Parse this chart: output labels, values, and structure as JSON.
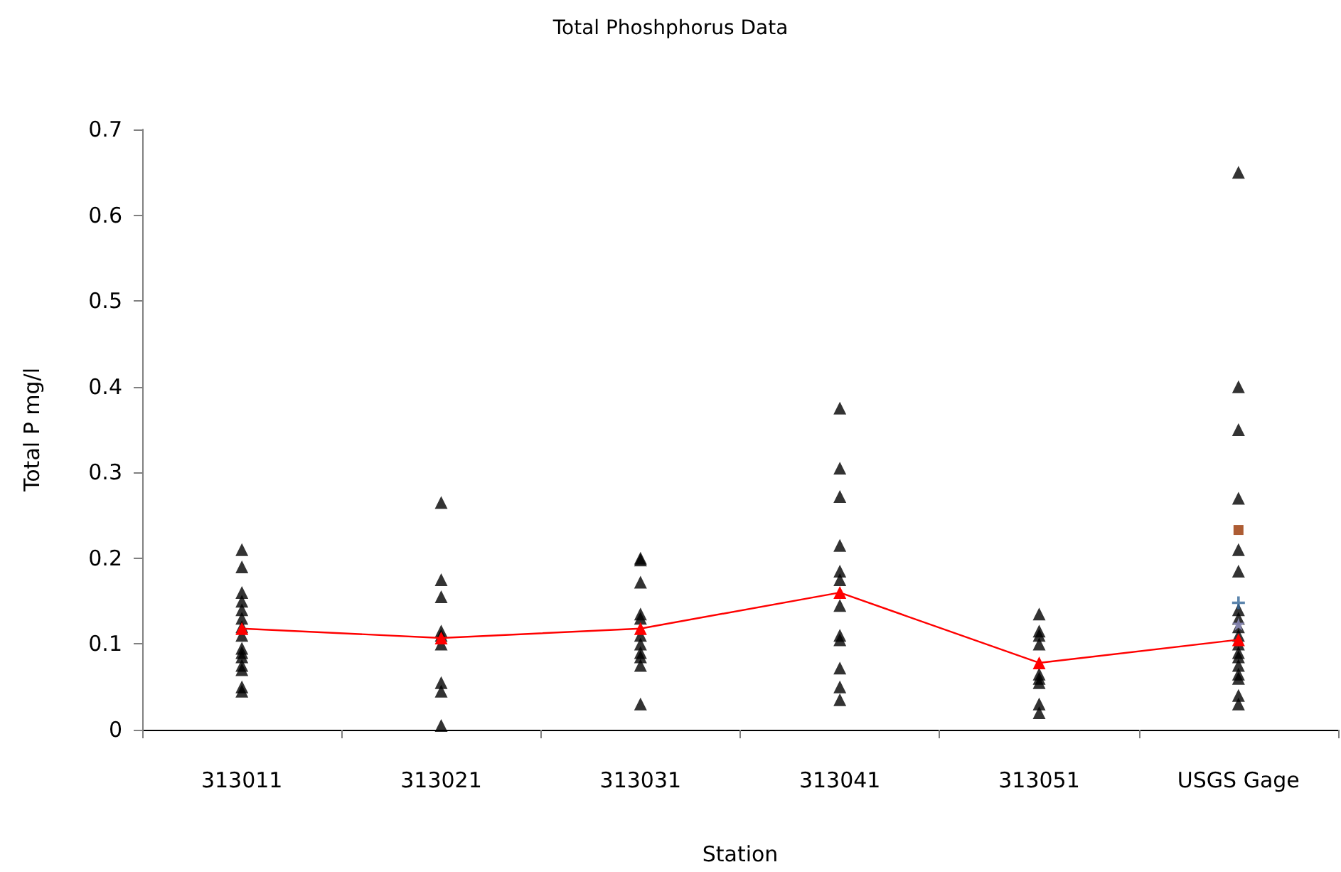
{
  "chart_data": {
    "type": "scatter",
    "title": "Total Phoshphorus Data",
    "xlabel": "Station",
    "ylabel": "Total P mg/l",
    "categories": [
      "313011",
      "313021",
      "313031",
      "313041",
      "313051",
      "USGS Gage"
    ],
    "ylim": [
      0,
      0.7
    ],
    "yticks": [
      0,
      0.1,
      0.2,
      0.3,
      0.4,
      0.5,
      0.6,
      0.7
    ],
    "grid": false,
    "series": [
      {
        "color": "#000000",
        "marker": "triangle",
        "x": [
          "313011",
          "313011",
          "313011",
          "313011",
          "313011",
          "313011",
          "313011",
          "313011",
          "313011",
          "313011",
          "313011",
          "313011",
          "313011",
          "313011",
          "313011",
          "313021",
          "313021",
          "313021",
          "313021",
          "313021",
          "313021",
          "313021",
          "313021",
          "313021",
          "313031",
          "313031",
          "313031",
          "313031",
          "313031",
          "313031",
          "313031",
          "313031",
          "313031",
          "313031",
          "313031",
          "313041",
          "313041",
          "313041",
          "313041",
          "313041",
          "313041",
          "313041",
          "313041",
          "313041",
          "313041",
          "313041",
          "313041",
          "313051",
          "313051",
          "313051",
          "313051",
          "313051",
          "313051",
          "313051",
          "313051",
          "313051",
          "USGS Gage",
          "USGS Gage",
          "USGS Gage",
          "USGS Gage",
          "USGS Gage",
          "USGS Gage",
          "USGS Gage",
          "USGS Gage",
          "USGS Gage",
          "USGS Gage",
          "USGS Gage",
          "USGS Gage",
          "USGS Gage",
          "USGS Gage",
          "USGS Gage",
          "USGS Gage",
          "USGS Gage",
          "USGS Gage"
        ],
        "values": [
          0.21,
          0.19,
          0.16,
          0.15,
          0.14,
          0.13,
          0.12,
          0.11,
          0.095,
          0.09,
          0.085,
          0.075,
          0.07,
          0.05,
          0.045,
          0.265,
          0.175,
          0.155,
          0.115,
          0.11,
          0.1,
          0.055,
          0.045,
          0.005,
          0.2,
          0.198,
          0.172,
          0.135,
          0.13,
          0.11,
          0.1,
          0.09,
          0.085,
          0.075,
          0.03,
          0.375,
          0.305,
          0.272,
          0.215,
          0.185,
          0.175,
          0.145,
          0.11,
          0.105,
          0.072,
          0.05,
          0.035,
          0.135,
          0.115,
          0.11,
          0.1,
          0.065,
          0.06,
          0.055,
          0.03,
          0.02,
          0.65,
          0.4,
          0.35,
          0.27,
          0.21,
          0.185,
          0.14,
          0.13,
          0.12,
          0.11,
          0.1,
          0.09,
          0.085,
          0.075,
          0.065,
          0.06,
          0.04,
          0.03
        ]
      },
      {
        "color": "#993300",
        "marker": "square",
        "x": [
          "USGS Gage"
        ],
        "values": [
          0.233
        ]
      },
      {
        "color": "#336699",
        "marker": "cross",
        "x": [
          "USGS Gage"
        ],
        "values": [
          0.148
        ]
      },
      {
        "color": "#9999cc",
        "marker": "star",
        "x": [
          "USGS Gage"
        ],
        "values": [
          0.123
        ]
      },
      {
        "type": "line",
        "color": "#ff0000",
        "marker": "triangle",
        "line_style": "solid",
        "values": [
          0.118,
          0.107,
          0.118,
          0.16,
          0.078,
          0.105
        ]
      }
    ]
  }
}
